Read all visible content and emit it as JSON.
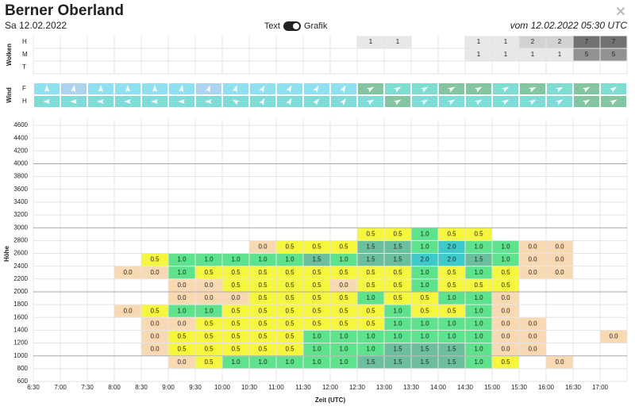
{
  "header": {
    "title": "Berner Oberland",
    "date": "Sa 12.02.2022",
    "toggle_left": "Text",
    "toggle_right": "Grafik",
    "issued": "vom 12.02.2022 05:30 UTC",
    "close": "✕"
  },
  "times": [
    "6:30",
    "7:00",
    "7:30",
    "8:00",
    "8:30",
    "9:00",
    "9:30",
    "10:00",
    "10:30",
    "11:00",
    "11:30",
    "12:00",
    "12:30",
    "13:00",
    "13:30",
    "14:00",
    "14:30",
    "15:00",
    "15:30",
    "16:00",
    "16:30",
    "17:00"
  ],
  "clouds": {
    "label": "Wolken",
    "scale": {
      "1": "#e8e8e8",
      "2": "#d2d2d2",
      "5": "#929292",
      "7": "#727272"
    },
    "rows": [
      {
        "label": "H",
        "values": [
          null,
          null,
          null,
          null,
          null,
          null,
          null,
          null,
          null,
          null,
          null,
          null,
          "1",
          "1",
          null,
          null,
          "1",
          "1",
          "2",
          "2",
          "7",
          "7"
        ]
      },
      {
        "label": "M",
        "values": [
          null,
          null,
          null,
          null,
          null,
          null,
          null,
          null,
          null,
          null,
          null,
          null,
          null,
          null,
          null,
          null,
          "1",
          "1",
          "1",
          "1",
          "5",
          "5"
        ]
      },
      {
        "label": "T",
        "values": [
          null,
          null,
          null,
          null,
          null,
          null,
          null,
          null,
          null,
          null,
          null,
          null,
          null,
          null,
          null,
          null,
          null,
          null,
          null,
          null,
          null,
          null
        ]
      }
    ]
  },
  "wind": {
    "label": "Wind",
    "rows": [
      {
        "label": "F",
        "dir": [
          0,
          10,
          0,
          0,
          0,
          10,
          20,
          20,
          30,
          30,
          30,
          30,
          60,
          60,
          60,
          60,
          60,
          60,
          65,
          65,
          60,
          55
        ],
        "colors": [
          "#8fe0f0",
          "#add3ee",
          "#8fe0f0",
          "#8fe0f0",
          "#8fe0f0",
          "#8fe0f0",
          "#add3ee",
          "#8fe0f0",
          "#8fe0f0",
          "#8fe0f0",
          "#8fe0f0",
          "#8fe0f0",
          "#84c6a2",
          "#7fdcd0",
          "#7fdcd0",
          "#84c6a2",
          "#84c6a2",
          "#7fdcd0",
          "#84c6a2",
          "#7fdcd0",
          "#84c6a2",
          "#7fdcd0"
        ]
      },
      {
        "label": "H",
        "dir": [
          270,
          270,
          270,
          270,
          270,
          270,
          270,
          300,
          30,
          30,
          40,
          40,
          60,
          60,
          60,
          60,
          60,
          60,
          60,
          60,
          60,
          60
        ],
        "colors": [
          "#7fdcd6",
          "#7fdcd6",
          "#7fdcd6",
          "#7fdcd6",
          "#7fdcd6",
          "#7fdcd6",
          "#7fdcd6",
          "#7fdcd6",
          "#7fdcd6",
          "#7fdcd6",
          "#7fdcd6",
          "#7fdcd6",
          "#7fdcd6",
          "#84c6a2",
          "#7fdcd6",
          "#7fdcd6",
          "#7fdcd6",
          "#7fdcd6",
          "#7fdcd6",
          "#7fdcd6",
          "#84c6a2",
          "#84c6a2"
        ]
      }
    ]
  },
  "grid": {
    "y_label": "Höhe",
    "x_label": "Zeit (UTC)",
    "heights": [
      600,
      800,
      1000,
      1200,
      1400,
      1600,
      1800,
      2000,
      2200,
      2400,
      2600,
      2800,
      3000,
      3200,
      3400,
      3600,
      3800,
      4000,
      4200,
      4400,
      4600
    ],
    "scale": {
      "0.0": "#f8d9b2",
      "0.5": "#f6f63e",
      "1.0": "#5fe28c",
      "1.5": "#6cbf9c",
      "2.0": "#3ecaca"
    },
    "rows": [
      null,
      [
        null,
        null,
        null,
        null,
        null,
        "0.0",
        "0.5",
        "1.0",
        "1.0",
        "1.0",
        "1.0",
        "1.0",
        "1.5",
        "1.5",
        "1.5",
        "1.5",
        "1.0",
        "0.5",
        null,
        "0.0",
        null,
        null
      ],
      [
        null,
        null,
        null,
        null,
        "0.0",
        "0.5",
        "0.5",
        "0.5",
        "0.5",
        "0.5",
        "1.0",
        "1.0",
        "1.0",
        "1.5",
        "1.5",
        "1.5",
        "1.0",
        "0.0",
        "0.0",
        null,
        null,
        null
      ],
      [
        null,
        null,
        null,
        null,
        "0.0",
        "0.5",
        "0.5",
        "0.5",
        "0.5",
        "0.5",
        "1.0",
        "1.0",
        "1.0",
        "1.0",
        "1.0",
        "1.0",
        "1.0",
        "0.0",
        "0.0",
        null,
        null,
        "0.0"
      ],
      [
        null,
        null,
        null,
        null,
        "0.0",
        "0.0",
        "0.5",
        "0.5",
        "0.5",
        "0.5",
        "0.5",
        "0.5",
        "0.5",
        "1.0",
        "1.0",
        "1.0",
        "1.0",
        "0.0",
        "0.0",
        null,
        null,
        null
      ],
      [
        null,
        null,
        null,
        "0.0",
        "0.5",
        "1.0",
        "1.0",
        "0.5",
        "0.5",
        "0.5",
        "0.5",
        "0.5",
        "0.5",
        "1.0",
        "0.5",
        "0.5",
        "1.0",
        "0.0",
        null,
        null,
        null,
        null
      ],
      [
        null,
        null,
        null,
        null,
        null,
        "0.0",
        "0.0",
        "0.0",
        "0.5",
        "0.5",
        "0.5",
        "0.5",
        "1.0",
        "0.5",
        "0.5",
        "1.0",
        "1.0",
        "0.0",
        null,
        null,
        null,
        null
      ],
      [
        null,
        null,
        null,
        null,
        null,
        "0.0",
        "0.0",
        "0.5",
        "0.5",
        "0.5",
        "0.5",
        "0.0",
        "0.5",
        "0.5",
        "1.0",
        "0.5",
        "0.5",
        "0.5",
        null,
        null,
        null,
        null
      ],
      [
        null,
        null,
        null,
        "0.0",
        "0.0",
        "1.0",
        "0.5",
        "0.5",
        "0.5",
        "0.5",
        "0.5",
        "0.5",
        "0.5",
        "0.5",
        "1.0",
        "0.5",
        "1.0",
        "0.5",
        "0.0",
        "0.0",
        null,
        null
      ],
      [
        null,
        null,
        null,
        null,
        "0.5",
        "1.0",
        "1.0",
        "1.0",
        "1.0",
        "1.0",
        "1.5",
        "1.0",
        "1.5",
        "1.5",
        "2.0",
        "2.0",
        "1.5",
        "1.0",
        "0.0",
        "0.0",
        null,
        null
      ],
      [
        null,
        null,
        null,
        null,
        null,
        null,
        null,
        null,
        "0.0",
        "0.5",
        "0.5",
        "0.5",
        "1.5",
        "1.5",
        "1.0",
        "2.0",
        "1.0",
        "1.0",
        "0.0",
        "0.0",
        null,
        null
      ],
      [
        null,
        null,
        null,
        null,
        null,
        null,
        null,
        null,
        null,
        null,
        null,
        null,
        "0.5",
        "0.5",
        "1.0",
        "0.5",
        "0.5",
        null,
        null,
        null,
        null,
        null
      ],
      null,
      null,
      null,
      null,
      null,
      null,
      null,
      null
    ]
  }
}
